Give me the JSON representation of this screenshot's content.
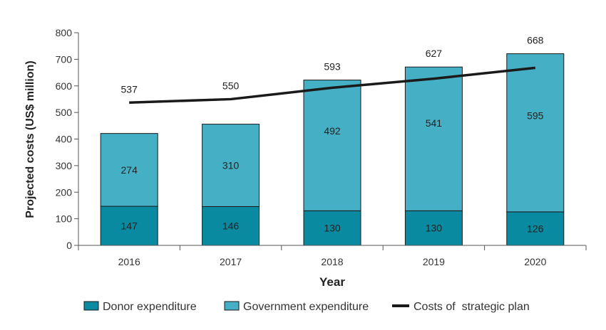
{
  "chart_data": {
    "type": "bar",
    "stacked": true,
    "xlabel": "Year",
    "ylabel": "Projected costs (US$ million)",
    "ylim": [
      0,
      800
    ],
    "yticks": [
      0,
      100,
      200,
      300,
      400,
      500,
      600,
      700,
      800
    ],
    "categories": [
      "2016",
      "2017",
      "2018",
      "2019",
      "2020"
    ],
    "series": [
      {
        "name": "Donor expenditure",
        "kind": "bar",
        "color": "#0a8aa0",
        "values": [
          147,
          146,
          130,
          130,
          126
        ],
        "labels": [
          "147",
          "146",
          "130",
          "130",
          "126"
        ]
      },
      {
        "name": "Government expenditure",
        "kind": "bar",
        "color": "#45b0c5",
        "values": [
          274,
          310,
          492,
          541,
          595
        ],
        "labels": [
          "274",
          "310",
          "492",
          "541",
          "595"
        ]
      },
      {
        "name": "Costs of  strategic plan",
        "kind": "line",
        "color": "#1a1a1a",
        "values": [
          537,
          550,
          593,
          627,
          668
        ],
        "labels": [
          "537",
          "550",
          "593",
          "627",
          "668"
        ]
      }
    ],
    "grid": false,
    "legend": "bottom"
  }
}
